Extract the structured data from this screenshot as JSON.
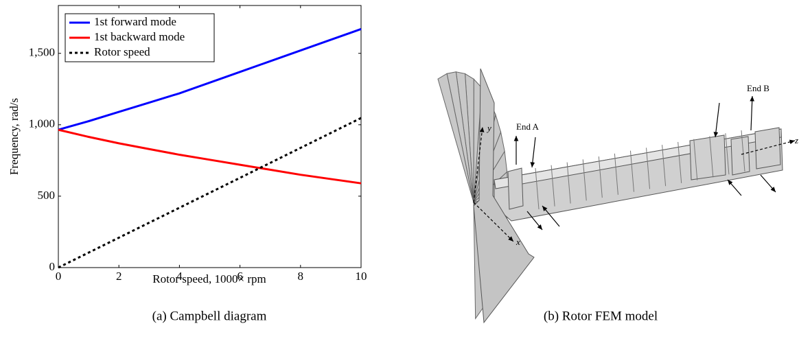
{
  "chart_data": {
    "type": "line",
    "caption": "(a) Campbell diagram",
    "xlabel": "Rotor speed, 1000× rpm",
    "ylabel": "Frequency, rad/s",
    "x": [
      0,
      1,
      2,
      3,
      4,
      5,
      6,
      7,
      8,
      9,
      10
    ],
    "series": [
      {
        "name": "1st forward mode",
        "color": "#0000ff",
        "style": "solid",
        "values": [
          965,
          1025,
          1090,
          1155,
          1220,
          1295,
          1370,
          1445,
          1520,
          1595,
          1670
        ]
      },
      {
        "name": "1st backward mode",
        "color": "#ff0000",
        "style": "solid",
        "values": [
          965,
          915,
          870,
          830,
          790,
          755,
          720,
          685,
          650,
          620,
          590
        ]
      },
      {
        "name": "Rotor speed",
        "color": "#000000",
        "style": "dashed",
        "values": [
          0,
          104.7,
          209.4,
          314.2,
          418.9,
          523.6,
          628.3,
          733.0,
          837.8,
          942.5,
          1047.2
        ]
      }
    ],
    "xlim": [
      0,
      10
    ],
    "xticks": [
      0,
      2,
      4,
      6,
      8,
      10
    ],
    "ylim": [
      0,
      1835
    ],
    "yticks": [
      0,
      500,
      {
        "value": 1000,
        "label": "1,000"
      },
      {
        "value": 1500,
        "label": "1,500"
      }
    ],
    "legend": "top-left",
    "grid": false
  },
  "figure_b": {
    "caption": "(b) Rotor FEM model",
    "labels": {
      "end_a": "End A",
      "end_b": "End B",
      "x": "x",
      "y": "y",
      "z": "z"
    }
  }
}
